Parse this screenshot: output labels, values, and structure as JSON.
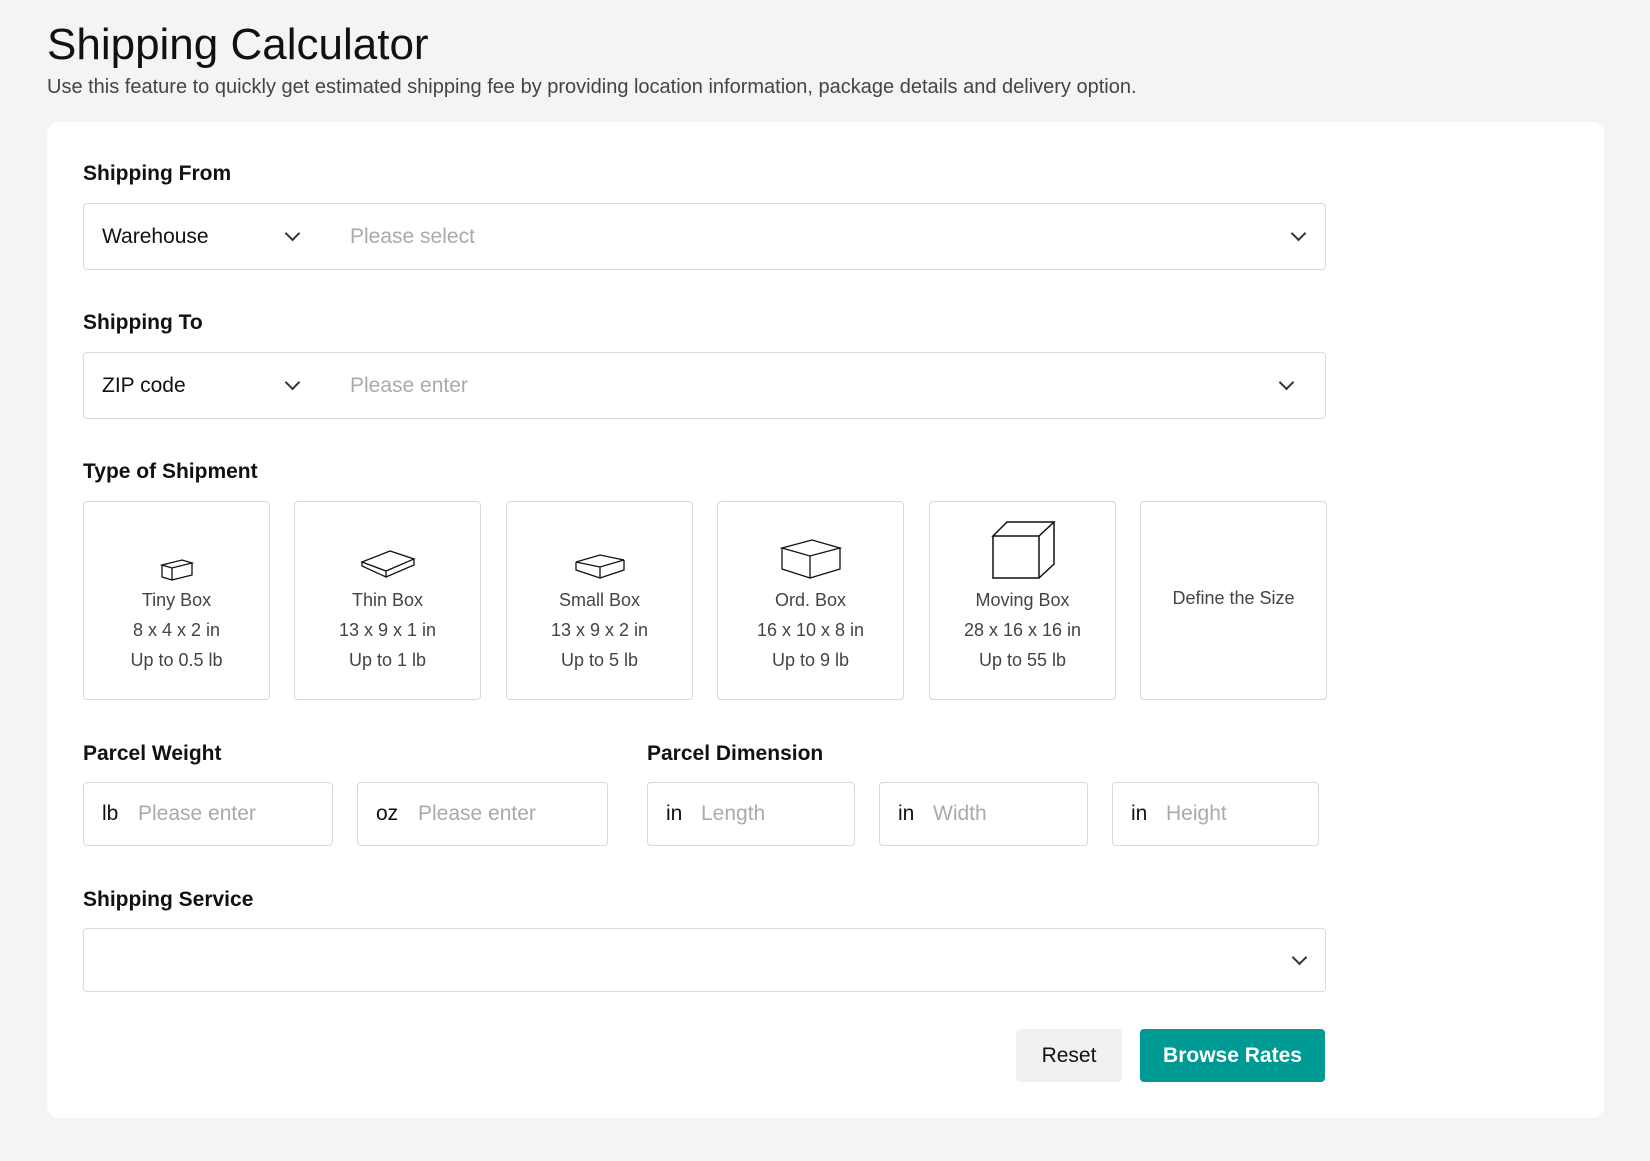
{
  "page": {
    "title": "Shipping Calculator",
    "subtitle": "Use this feature to quickly get estimated shipping fee by providing location information, package details and delivery option."
  },
  "shipping_from": {
    "label": "Shipping From",
    "type_value": "Warehouse",
    "placeholder": "Please select"
  },
  "shipping_to": {
    "label": "Shipping To",
    "type_value": "ZIP code",
    "placeholder": "Please enter"
  },
  "shipment_type": {
    "label": "Type of Shipment",
    "options": [
      {
        "name": "Tiny Box",
        "size": "8 x 4 x 2 in",
        "weight": "Up to 0.5 lb",
        "icon": "tiny-box-icon"
      },
      {
        "name": "Thin Box",
        "size": "13 x 9 x 1 in",
        "weight": "Up to 1 lb",
        "icon": "thin-box-icon"
      },
      {
        "name": "Small Box",
        "size": "13 x 9 x 2 in",
        "weight": "Up to 5 lb",
        "icon": "small-box-icon"
      },
      {
        "name": "Ord. Box",
        "size": "16 x 10 x 8 in",
        "weight": "Up to 9 lb",
        "icon": "ordinary-box-icon"
      },
      {
        "name": "Moving Box",
        "size": "28 x 16 x 16 in",
        "weight": "Up to 55 lb",
        "icon": "moving-box-icon"
      },
      {
        "name": "Define the Size"
      }
    ]
  },
  "parcel_weight": {
    "label": "Parcel Weight",
    "lb_unit": "lb",
    "lb_placeholder": "Please enter",
    "oz_unit": "oz",
    "oz_placeholder": "Please enter"
  },
  "parcel_dimension": {
    "label": "Parcel Dimension",
    "unit": "in",
    "length_placeholder": "Length",
    "width_placeholder": "Width",
    "height_placeholder": "Height"
  },
  "shipping_service": {
    "label": "Shipping Service",
    "value": ""
  },
  "actions": {
    "reset": "Reset",
    "browse": "Browse Rates"
  },
  "colors": {
    "accent": "#009a94",
    "background": "#f4f4f4"
  }
}
